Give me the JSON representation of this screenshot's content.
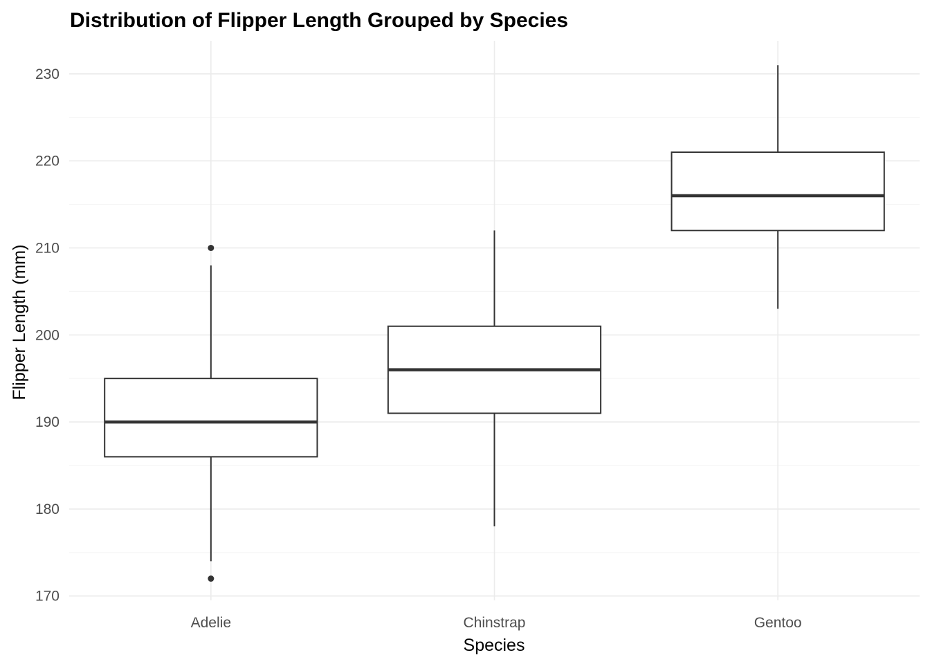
{
  "chart_data": {
    "type": "boxplot",
    "title": "Distribution of Flipper Length Grouped by Species",
    "xlabel": "Species",
    "ylabel": "Flipper Length (mm)",
    "ylim": [
      169.5,
      233.8
    ],
    "yticks": [
      170,
      180,
      190,
      200,
      210,
      220,
      230
    ],
    "grid": true,
    "categories": [
      "Adelie",
      "Chinstrap",
      "Gentoo"
    ],
    "boxes": [
      {
        "category": "Adelie",
        "whisker_low": 174,
        "q1": 186,
        "median": 190,
        "q3": 195,
        "whisker_high": 208,
        "outliers": [
          172,
          210
        ]
      },
      {
        "category": "Chinstrap",
        "whisker_low": 178,
        "q1": 191,
        "median": 196,
        "q3": 201,
        "whisker_high": 212,
        "outliers": []
      },
      {
        "category": "Gentoo",
        "whisker_low": 203,
        "q1": 212,
        "median": 216,
        "q3": 221,
        "whisker_high": 231,
        "outliers": []
      }
    ],
    "colors": {
      "box_stroke": "#333333",
      "box_fill": "#ffffff",
      "grid_major": "#ebebeb",
      "grid_minor": "#f5f5f5"
    }
  }
}
